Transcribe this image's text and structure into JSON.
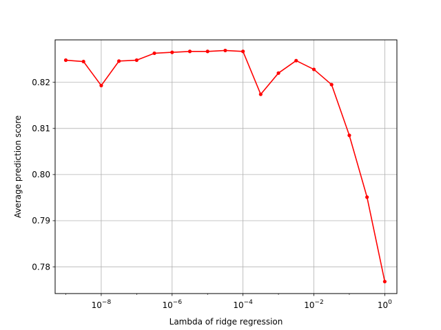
{
  "chart_data": {
    "type": "line",
    "xlabel": "Lambda of ridge regression",
    "ylabel": "Average prediction score",
    "x_scale": "log",
    "xlim": [
      5e-10,
      2.2
    ],
    "ylim": [
      0.7742,
      0.8292
    ],
    "grid": true,
    "x_ticks": [
      {
        "value": 1e-08,
        "base": "10",
        "exp": "−8"
      },
      {
        "value": 1e-06,
        "base": "10",
        "exp": "−6"
      },
      {
        "value": 0.0001,
        "base": "10",
        "exp": "−4"
      },
      {
        "value": 0.01,
        "base": "10",
        "exp": "−2"
      },
      {
        "value": 1,
        "base": "10",
        "exp": "0"
      }
    ],
    "y_ticks": [
      {
        "value": 0.78,
        "label": "0.78"
      },
      {
        "value": 0.79,
        "label": "0.79"
      },
      {
        "value": 0.8,
        "label": "0.80"
      },
      {
        "value": 0.81,
        "label": "0.81"
      },
      {
        "value": 0.82,
        "label": "0.82"
      }
    ],
    "series": [
      {
        "color": "#ff0000",
        "x": [
          1e-09,
          3.16e-09,
          1e-08,
          3.16e-08,
          1e-07,
          3.16e-07,
          1e-06,
          3.16e-06,
          1e-05,
          3.16e-05,
          0.0001,
          0.000316,
          0.001,
          0.00316,
          0.01,
          0.0316,
          0.1,
          0.316,
          1
        ],
        "y": [
          0.8248,
          0.8245,
          0.8193,
          0.8246,
          0.8248,
          0.8263,
          0.8265,
          0.8267,
          0.8267,
          0.8269,
          0.8267,
          0.8174,
          0.822,
          0.8247,
          0.8228,
          0.8195,
          0.8085,
          0.7951,
          0.7768
        ]
      }
    ]
  }
}
